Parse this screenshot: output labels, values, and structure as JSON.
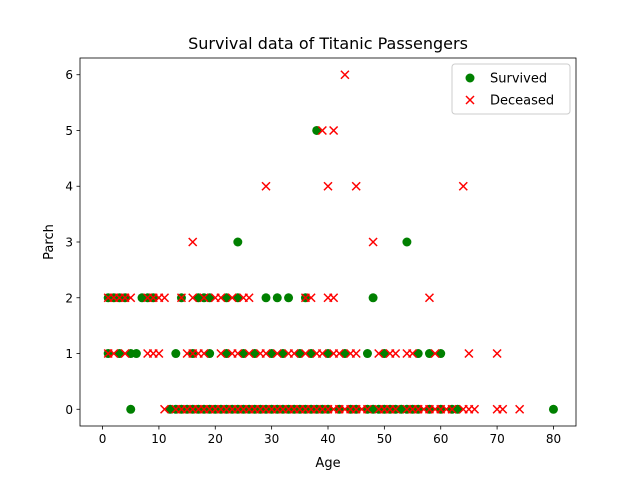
{
  "chart_data": {
    "type": "scatter",
    "title": "Survival data of Titanic Passengers",
    "xlabel": "Age",
    "ylabel": "Parch",
    "xlim": [
      -4,
      84
    ],
    "ylim": [
      -0.3,
      6.3
    ],
    "xticks": [
      0,
      10,
      20,
      30,
      40,
      50,
      60,
      70,
      80
    ],
    "yticks": [
      0,
      1,
      2,
      3,
      4,
      5,
      6
    ],
    "grid": false,
    "legend_position": "top-right",
    "series": [
      {
        "name": "Survived",
        "marker": "circle",
        "color": "#008000",
        "points": [
          [
            1,
            1
          ],
          [
            1,
            2
          ],
          [
            2,
            2
          ],
          [
            3,
            1
          ],
          [
            3,
            2
          ],
          [
            4,
            2
          ],
          [
            5,
            0
          ],
          [
            5,
            1
          ],
          [
            6,
            1
          ],
          [
            7,
            2
          ],
          [
            8,
            2
          ],
          [
            9,
            2
          ],
          [
            14,
            2
          ],
          [
            17,
            2
          ],
          [
            18,
            2
          ],
          [
            19,
            2
          ],
          [
            22,
            2
          ],
          [
            24,
            2
          ],
          [
            24,
            3
          ],
          [
            29,
            2
          ],
          [
            31,
            2
          ],
          [
            33,
            2
          ],
          [
            36,
            2
          ],
          [
            38,
            5
          ],
          [
            48,
            2
          ],
          [
            54,
            3
          ],
          [
            13,
            1
          ],
          [
            16,
            1
          ],
          [
            19,
            1
          ],
          [
            22,
            1
          ],
          [
            25,
            1
          ],
          [
            27,
            1
          ],
          [
            30,
            1
          ],
          [
            32,
            1
          ],
          [
            35,
            1
          ],
          [
            37,
            1
          ],
          [
            40,
            1
          ],
          [
            43,
            1
          ],
          [
            47,
            1
          ],
          [
            50,
            1
          ],
          [
            56,
            1
          ],
          [
            58,
            1
          ],
          [
            60,
            1
          ],
          [
            12,
            0
          ],
          [
            13,
            0
          ],
          [
            14,
            0
          ],
          [
            15,
            0
          ],
          [
            16,
            0
          ],
          [
            17,
            0
          ],
          [
            18,
            0
          ],
          [
            19,
            0
          ],
          [
            20,
            0
          ],
          [
            21,
            0
          ],
          [
            22,
            0
          ],
          [
            23,
            0
          ],
          [
            24,
            0
          ],
          [
            25,
            0
          ],
          [
            26,
            0
          ],
          [
            27,
            0
          ],
          [
            28,
            0
          ],
          [
            29,
            0
          ],
          [
            30,
            0
          ],
          [
            31,
            0
          ],
          [
            32,
            0
          ],
          [
            33,
            0
          ],
          [
            34,
            0
          ],
          [
            35,
            0
          ],
          [
            36,
            0
          ],
          [
            37,
            0
          ],
          [
            38,
            0
          ],
          [
            39,
            0
          ],
          [
            40,
            0
          ],
          [
            42,
            0
          ],
          [
            44,
            0
          ],
          [
            45,
            0
          ],
          [
            47,
            0
          ],
          [
            48,
            0
          ],
          [
            49,
            0
          ],
          [
            50,
            0
          ],
          [
            51,
            0
          ],
          [
            52,
            0
          ],
          [
            53,
            0
          ],
          [
            54,
            0
          ],
          [
            55,
            0
          ],
          [
            56,
            0
          ],
          [
            58,
            0
          ],
          [
            60,
            0
          ],
          [
            62,
            0
          ],
          [
            63,
            0
          ],
          [
            80,
            0
          ]
        ]
      },
      {
        "name": "Deceased",
        "marker": "x",
        "color": "#ff0000",
        "points": [
          [
            43,
            6
          ],
          [
            39,
            5
          ],
          [
            41,
            5
          ],
          [
            29,
            4
          ],
          [
            40,
            4
          ],
          [
            45,
            4
          ],
          [
            64,
            4
          ],
          [
            16,
            3
          ],
          [
            48,
            3
          ],
          [
            1,
            2
          ],
          [
            2,
            2
          ],
          [
            3,
            2
          ],
          [
            4,
            2
          ],
          [
            5,
            2
          ],
          [
            8,
            2
          ],
          [
            9,
            2
          ],
          [
            10,
            2
          ],
          [
            11,
            2
          ],
          [
            14,
            2
          ],
          [
            16,
            2
          ],
          [
            18,
            2
          ],
          [
            20,
            2
          ],
          [
            21,
            2
          ],
          [
            23,
            2
          ],
          [
            25,
            2
          ],
          [
            26,
            2
          ],
          [
            36,
            2
          ],
          [
            37,
            2
          ],
          [
            40,
            2
          ],
          [
            41,
            2
          ],
          [
            58,
            2
          ],
          [
            1,
            1
          ],
          [
            2,
            1
          ],
          [
            4,
            1
          ],
          [
            8,
            1
          ],
          [
            9,
            1
          ],
          [
            10,
            1
          ],
          [
            15,
            1
          ],
          [
            16,
            1
          ],
          [
            17,
            1
          ],
          [
            18,
            1
          ],
          [
            21,
            1
          ],
          [
            23,
            1
          ],
          [
            24,
            1
          ],
          [
            26,
            1
          ],
          [
            28,
            1
          ],
          [
            29,
            1
          ],
          [
            31,
            1
          ],
          [
            33,
            1
          ],
          [
            34,
            1
          ],
          [
            36,
            1
          ],
          [
            38,
            1
          ],
          [
            39,
            1
          ],
          [
            41,
            1
          ],
          [
            42,
            1
          ],
          [
            44,
            1
          ],
          [
            45,
            1
          ],
          [
            49,
            1
          ],
          [
            51,
            1
          ],
          [
            52,
            1
          ],
          [
            54,
            1
          ],
          [
            55,
            1
          ],
          [
            59,
            1
          ],
          [
            65,
            1
          ],
          [
            70,
            1
          ],
          [
            11,
            0
          ],
          [
            13,
            0
          ],
          [
            14,
            0
          ],
          [
            15,
            0
          ],
          [
            16,
            0
          ],
          [
            17,
            0
          ],
          [
            18,
            0
          ],
          [
            19,
            0
          ],
          [
            20,
            0
          ],
          [
            21,
            0
          ],
          [
            22,
            0
          ],
          [
            23,
            0
          ],
          [
            24,
            0
          ],
          [
            25,
            0
          ],
          [
            26,
            0
          ],
          [
            27,
            0
          ],
          [
            28,
            0
          ],
          [
            29,
            0
          ],
          [
            30,
            0
          ],
          [
            31,
            0
          ],
          [
            32,
            0
          ],
          [
            33,
            0
          ],
          [
            34,
            0
          ],
          [
            35,
            0
          ],
          [
            36,
            0
          ],
          [
            37,
            0
          ],
          [
            38,
            0
          ],
          [
            39,
            0
          ],
          [
            40,
            0
          ],
          [
            41,
            0
          ],
          [
            42,
            0
          ],
          [
            43,
            0
          ],
          [
            44,
            0
          ],
          [
            45,
            0
          ],
          [
            46,
            0
          ],
          [
            47,
            0
          ],
          [
            49,
            0
          ],
          [
            50,
            0
          ],
          [
            51,
            0
          ],
          [
            52,
            0
          ],
          [
            54,
            0
          ],
          [
            55,
            0
          ],
          [
            56,
            0
          ],
          [
            57,
            0
          ],
          [
            58,
            0
          ],
          [
            59,
            0
          ],
          [
            60,
            0
          ],
          [
            61,
            0
          ],
          [
            62,
            0
          ],
          [
            64,
            0
          ],
          [
            65,
            0
          ],
          [
            66,
            0
          ],
          [
            70,
            0
          ],
          [
            71,
            0
          ],
          [
            74,
            0
          ]
        ]
      }
    ]
  }
}
